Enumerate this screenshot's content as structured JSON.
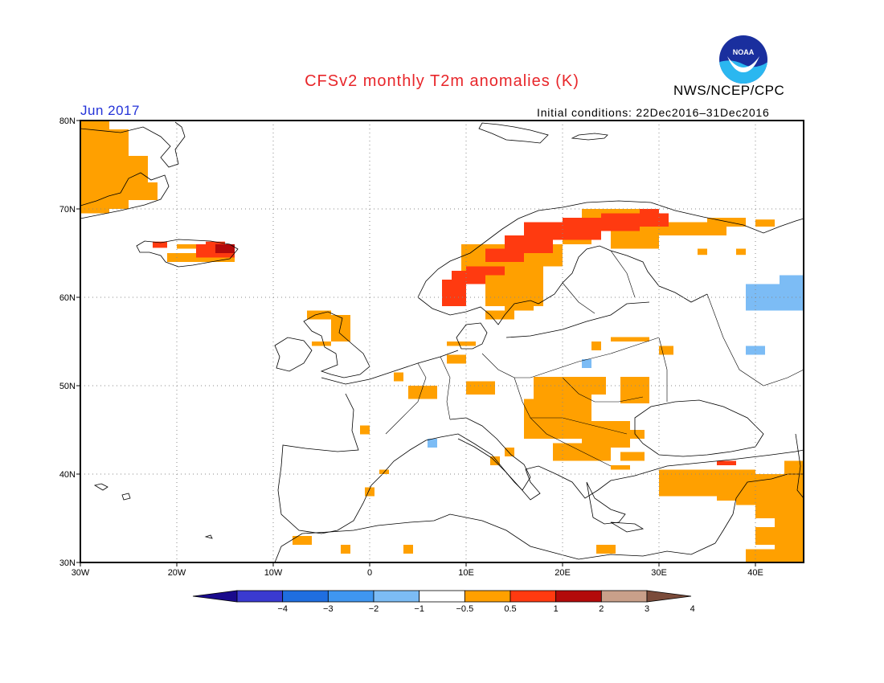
{
  "header": {
    "title": "CFSv2 monthly T2m anomalies (K)",
    "agency": "NWS/NCEP/CPC",
    "logo_text": "NOAA",
    "period": "Jun 2017",
    "initial_conditions": "Initial conditions: 22Dec2016–31Dec2016"
  },
  "map": {
    "lon_range": [
      -30,
      45
    ],
    "lat_range": [
      30,
      80
    ],
    "lon_ticks": [
      "30W",
      "20W",
      "10W",
      "0",
      "10E",
      "20E",
      "30E",
      "40E"
    ],
    "lat_ticks": [
      "30N",
      "40N",
      "50N",
      "60N",
      "70N",
      "80N"
    ],
    "grid": "dotted"
  },
  "colorbar": {
    "labels": [
      "−4",
      "−3",
      "−2",
      "−1",
      "−0.5",
      "0.5",
      "1",
      "2",
      "3",
      "4"
    ],
    "colors": [
      "#1a0b8c",
      "#3a3ad0",
      "#1f6ee0",
      "#3f96f0",
      "#7cbcf5",
      "#ffffff",
      "#ffa000",
      "#ff3a10",
      "#b30a0a",
      "#c9a08a",
      "#7a4b3a"
    ]
  },
  "anomalies": {
    "orange": [
      [
        -30,
        79,
        -27,
        80
      ],
      [
        -30,
        70,
        -25,
        79
      ],
      [
        -25,
        72,
        -23,
        76
      ],
      [
        -30,
        69.5,
        -27,
        70.5
      ],
      [
        -25,
        71,
        -22,
        73
      ],
      [
        -20,
        65.5,
        -15,
        66
      ],
      [
        -21,
        64,
        -14,
        65
      ],
      [
        -4,
        55,
        -2,
        58
      ],
      [
        -6,
        54.5,
        -4,
        55
      ],
      [
        -6.5,
        57.5,
        -4,
        58.5
      ],
      [
        9.5,
        62,
        14,
        66
      ],
      [
        12,
        59,
        18,
        64
      ],
      [
        14,
        63.5,
        20,
        66
      ],
      [
        20,
        66,
        23,
        69
      ],
      [
        22,
        68,
        30,
        70
      ],
      [
        25,
        65.5,
        30,
        68
      ],
      [
        30,
        67,
        37,
        68.5
      ],
      [
        35,
        68,
        39,
        69
      ],
      [
        40,
        68,
        42,
        68.8
      ],
      [
        34,
        64.8,
        35,
        65.5
      ],
      [
        38,
        64.8,
        39,
        65.5
      ],
      [
        8,
        54.5,
        11,
        55
      ],
      [
        14,
        58.5,
        17,
        60
      ],
      [
        12,
        57.5,
        15,
        58.5
      ],
      [
        25,
        55,
        29,
        55.5
      ],
      [
        30,
        53.5,
        31.5,
        54.5
      ],
      [
        23,
        54,
        24,
        55
      ],
      [
        8,
        52.5,
        10,
        53.5
      ],
      [
        2.5,
        50.5,
        3.5,
        51.5
      ],
      [
        4,
        48.5,
        7,
        50
      ],
      [
        10,
        49,
        13,
        50.5
      ],
      [
        17,
        48.5,
        23,
        51
      ],
      [
        22,
        49,
        24.5,
        51
      ],
      [
        26,
        48,
        29,
        51
      ],
      [
        16,
        44,
        23,
        48.5
      ],
      [
        22,
        43,
        27,
        46
      ],
      [
        27,
        44,
        28.5,
        45
      ],
      [
        19,
        41.5,
        25,
        43.5
      ],
      [
        26,
        41.5,
        28.5,
        42.5
      ],
      [
        25,
        40.5,
        27,
        41
      ],
      [
        14,
        42,
        15,
        43
      ],
      [
        12.5,
        41,
        13.5,
        42
      ],
      [
        -1,
        44.5,
        0,
        45.5
      ],
      [
        30,
        37.5,
        40,
        40.5
      ],
      [
        36,
        37,
        43,
        38.5
      ],
      [
        38,
        36.5,
        41,
        37.5
      ],
      [
        40,
        35,
        45,
        40
      ],
      [
        42,
        31,
        45,
        35
      ],
      [
        39,
        30,
        45,
        31.5
      ],
      [
        40,
        32,
        45,
        34
      ],
      [
        43,
        40,
        45,
        41.5
      ],
      [
        44,
        38,
        45,
        40
      ],
      [
        -8,
        32,
        -6,
        33
      ],
      [
        -3,
        31,
        -2,
        32
      ],
      [
        3.5,
        31,
        4.5,
        32
      ],
      [
        23.5,
        31,
        25.5,
        32
      ],
      [
        -0.5,
        37.5,
        0.5,
        38.5
      ],
      [
        1,
        40,
        2,
        40.5
      ]
    ],
    "red": [
      [
        -22.5,
        65.6,
        -21,
        66.3
      ],
      [
        -18,
        64.5,
        -14,
        66
      ],
      [
        -17,
        65.8,
        -15,
        66.3
      ],
      [
        7.5,
        59,
        10,
        62
      ],
      [
        8.5,
        61.5,
        12,
        63
      ],
      [
        10,
        62.5,
        14,
        63.5
      ],
      [
        12,
        64,
        16,
        65.5
      ],
      [
        14,
        65,
        19,
        67
      ],
      [
        16,
        66.5,
        24,
        68.5
      ],
      [
        20,
        67.5,
        28,
        69
      ],
      [
        24,
        68,
        31,
        69.5
      ],
      [
        28,
        69.5,
        30,
        70
      ],
      [
        36,
        41,
        38,
        41.5
      ]
    ],
    "darkred": [
      [
        -16,
        65,
        -14,
        66
      ]
    ],
    "blue": [
      [
        39,
        58.5,
        45,
        61.5
      ],
      [
        42.5,
        61.5,
        45,
        62.5
      ],
      [
        39,
        53.5,
        41,
        54.5
      ],
      [
        22,
        52,
        23,
        53
      ],
      [
        6,
        43,
        7,
        44
      ]
    ]
  }
}
